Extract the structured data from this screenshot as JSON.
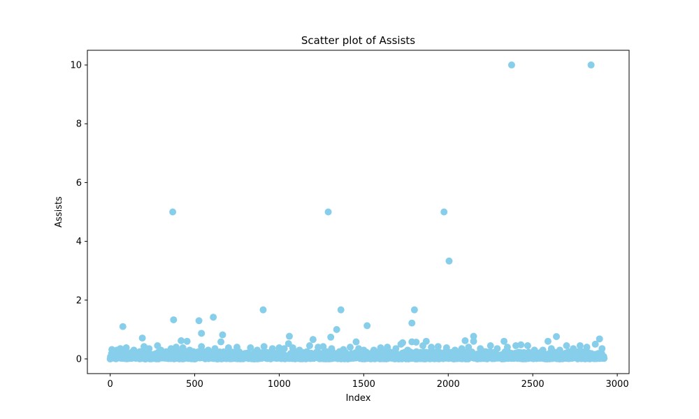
{
  "chart_data": {
    "type": "scatter",
    "title": "Scatter plot of Assists",
    "xlabel": "Index",
    "ylabel": "Assists",
    "xlim": [
      -135,
      3070
    ],
    "ylim": [
      -0.5,
      10.5
    ],
    "xticks": [
      0,
      500,
      1000,
      1500,
      2000,
      2500,
      3000
    ],
    "yticks": [
      0,
      2,
      4,
      6,
      8,
      10
    ],
    "xtick_labels": [
      "0",
      "500",
      "1000",
      "1500",
      "2000",
      "2500",
      "3000"
    ],
    "ytick_labels": [
      "0",
      "2",
      "4",
      "6",
      "8",
      "10"
    ],
    "grid": false,
    "legend": "none",
    "point_color": "#87ceeb",
    "n_points": 2922,
    "series": [
      {
        "points": [
          [
            370,
            5.0
          ],
          [
            1290,
            5.0
          ],
          [
            1975,
            5.0
          ],
          [
            2375,
            10.0
          ],
          [
            2845,
            10.0
          ],
          [
            2005,
            3.33
          ],
          [
            375,
            1.33
          ],
          [
            525,
            1.3
          ],
          [
            610,
            1.42
          ],
          [
            905,
            1.67
          ],
          [
            1365,
            1.67
          ],
          [
            1800,
            1.67
          ],
          [
            75,
            1.1
          ],
          [
            1520,
            1.13
          ],
          [
            1785,
            1.22
          ],
          [
            1340,
            1.0
          ],
          [
            540,
            0.87
          ],
          [
            665,
            0.82
          ],
          [
            1305,
            0.74
          ],
          [
            1060,
            0.77
          ],
          [
            2640,
            0.76
          ],
          [
            2150,
            0.77
          ],
          [
            190,
            0.71
          ],
          [
            420,
            0.62
          ],
          [
            455,
            0.6
          ],
          [
            655,
            0.58
          ],
          [
            1200,
            0.66
          ],
          [
            1455,
            0.58
          ],
          [
            1730,
            0.55
          ],
          [
            1785,
            0.58
          ],
          [
            1810,
            0.57
          ],
          [
            1870,
            0.6
          ],
          [
            2100,
            0.62
          ],
          [
            2150,
            0.6
          ],
          [
            2330,
            0.6
          ],
          [
            2590,
            0.6
          ],
          [
            2895,
            0.68
          ],
          [
            2870,
            0.5
          ],
          [
            1055,
            0.52
          ],
          [
            1720,
            0.5
          ],
          [
            10,
            0.32
          ],
          [
            40,
            0.3
          ],
          [
            60,
            0.35
          ],
          [
            95,
            0.38
          ],
          [
            140,
            0.3
          ],
          [
            200,
            0.42
          ],
          [
            230,
            0.35
          ],
          [
            280,
            0.45
          ],
          [
            300,
            0.3
          ],
          [
            360,
            0.35
          ],
          [
            390,
            0.4
          ],
          [
            430,
            0.38
          ],
          [
            470,
            0.3
          ],
          [
            540,
            0.42
          ],
          [
            580,
            0.3
          ],
          [
            620,
            0.35
          ],
          [
            700,
            0.38
          ],
          [
            750,
            0.4
          ],
          [
            830,
            0.38
          ],
          [
            870,
            0.3
          ],
          [
            910,
            0.42
          ],
          [
            960,
            0.35
          ],
          [
            1000,
            0.38
          ],
          [
            1030,
            0.35
          ],
          [
            1080,
            0.38
          ],
          [
            1120,
            0.3
          ],
          [
            1180,
            0.45
          ],
          [
            1230,
            0.4
          ],
          [
            1260,
            0.42
          ],
          [
            1310,
            0.35
          ],
          [
            1380,
            0.32
          ],
          [
            1420,
            0.4
          ],
          [
            1470,
            0.35
          ],
          [
            1500,
            0.3
          ],
          [
            1560,
            0.3
          ],
          [
            1600,
            0.38
          ],
          [
            1640,
            0.4
          ],
          [
            1690,
            0.35
          ],
          [
            1760,
            0.3
          ],
          [
            1850,
            0.45
          ],
          [
            1900,
            0.4
          ],
          [
            1940,
            0.42
          ],
          [
            1990,
            0.38
          ],
          [
            2040,
            0.3
          ],
          [
            2080,
            0.35
          ],
          [
            2120,
            0.4
          ],
          [
            2190,
            0.35
          ],
          [
            2250,
            0.45
          ],
          [
            2290,
            0.35
          ],
          [
            2350,
            0.4
          ],
          [
            2400,
            0.45
          ],
          [
            2430,
            0.48
          ],
          [
            2470,
            0.45
          ],
          [
            2510,
            0.3
          ],
          [
            2560,
            0.3
          ],
          [
            2610,
            0.35
          ],
          [
            2660,
            0.3
          ],
          [
            2700,
            0.45
          ],
          [
            2740,
            0.35
          ],
          [
            2780,
            0.45
          ],
          [
            2820,
            0.4
          ],
          [
            2910,
            0.35
          ]
        ]
      }
    ],
    "baseline_band": {
      "x_range": [
        0,
        2922
      ],
      "y_range": [
        0.0,
        0.25
      ]
    }
  }
}
